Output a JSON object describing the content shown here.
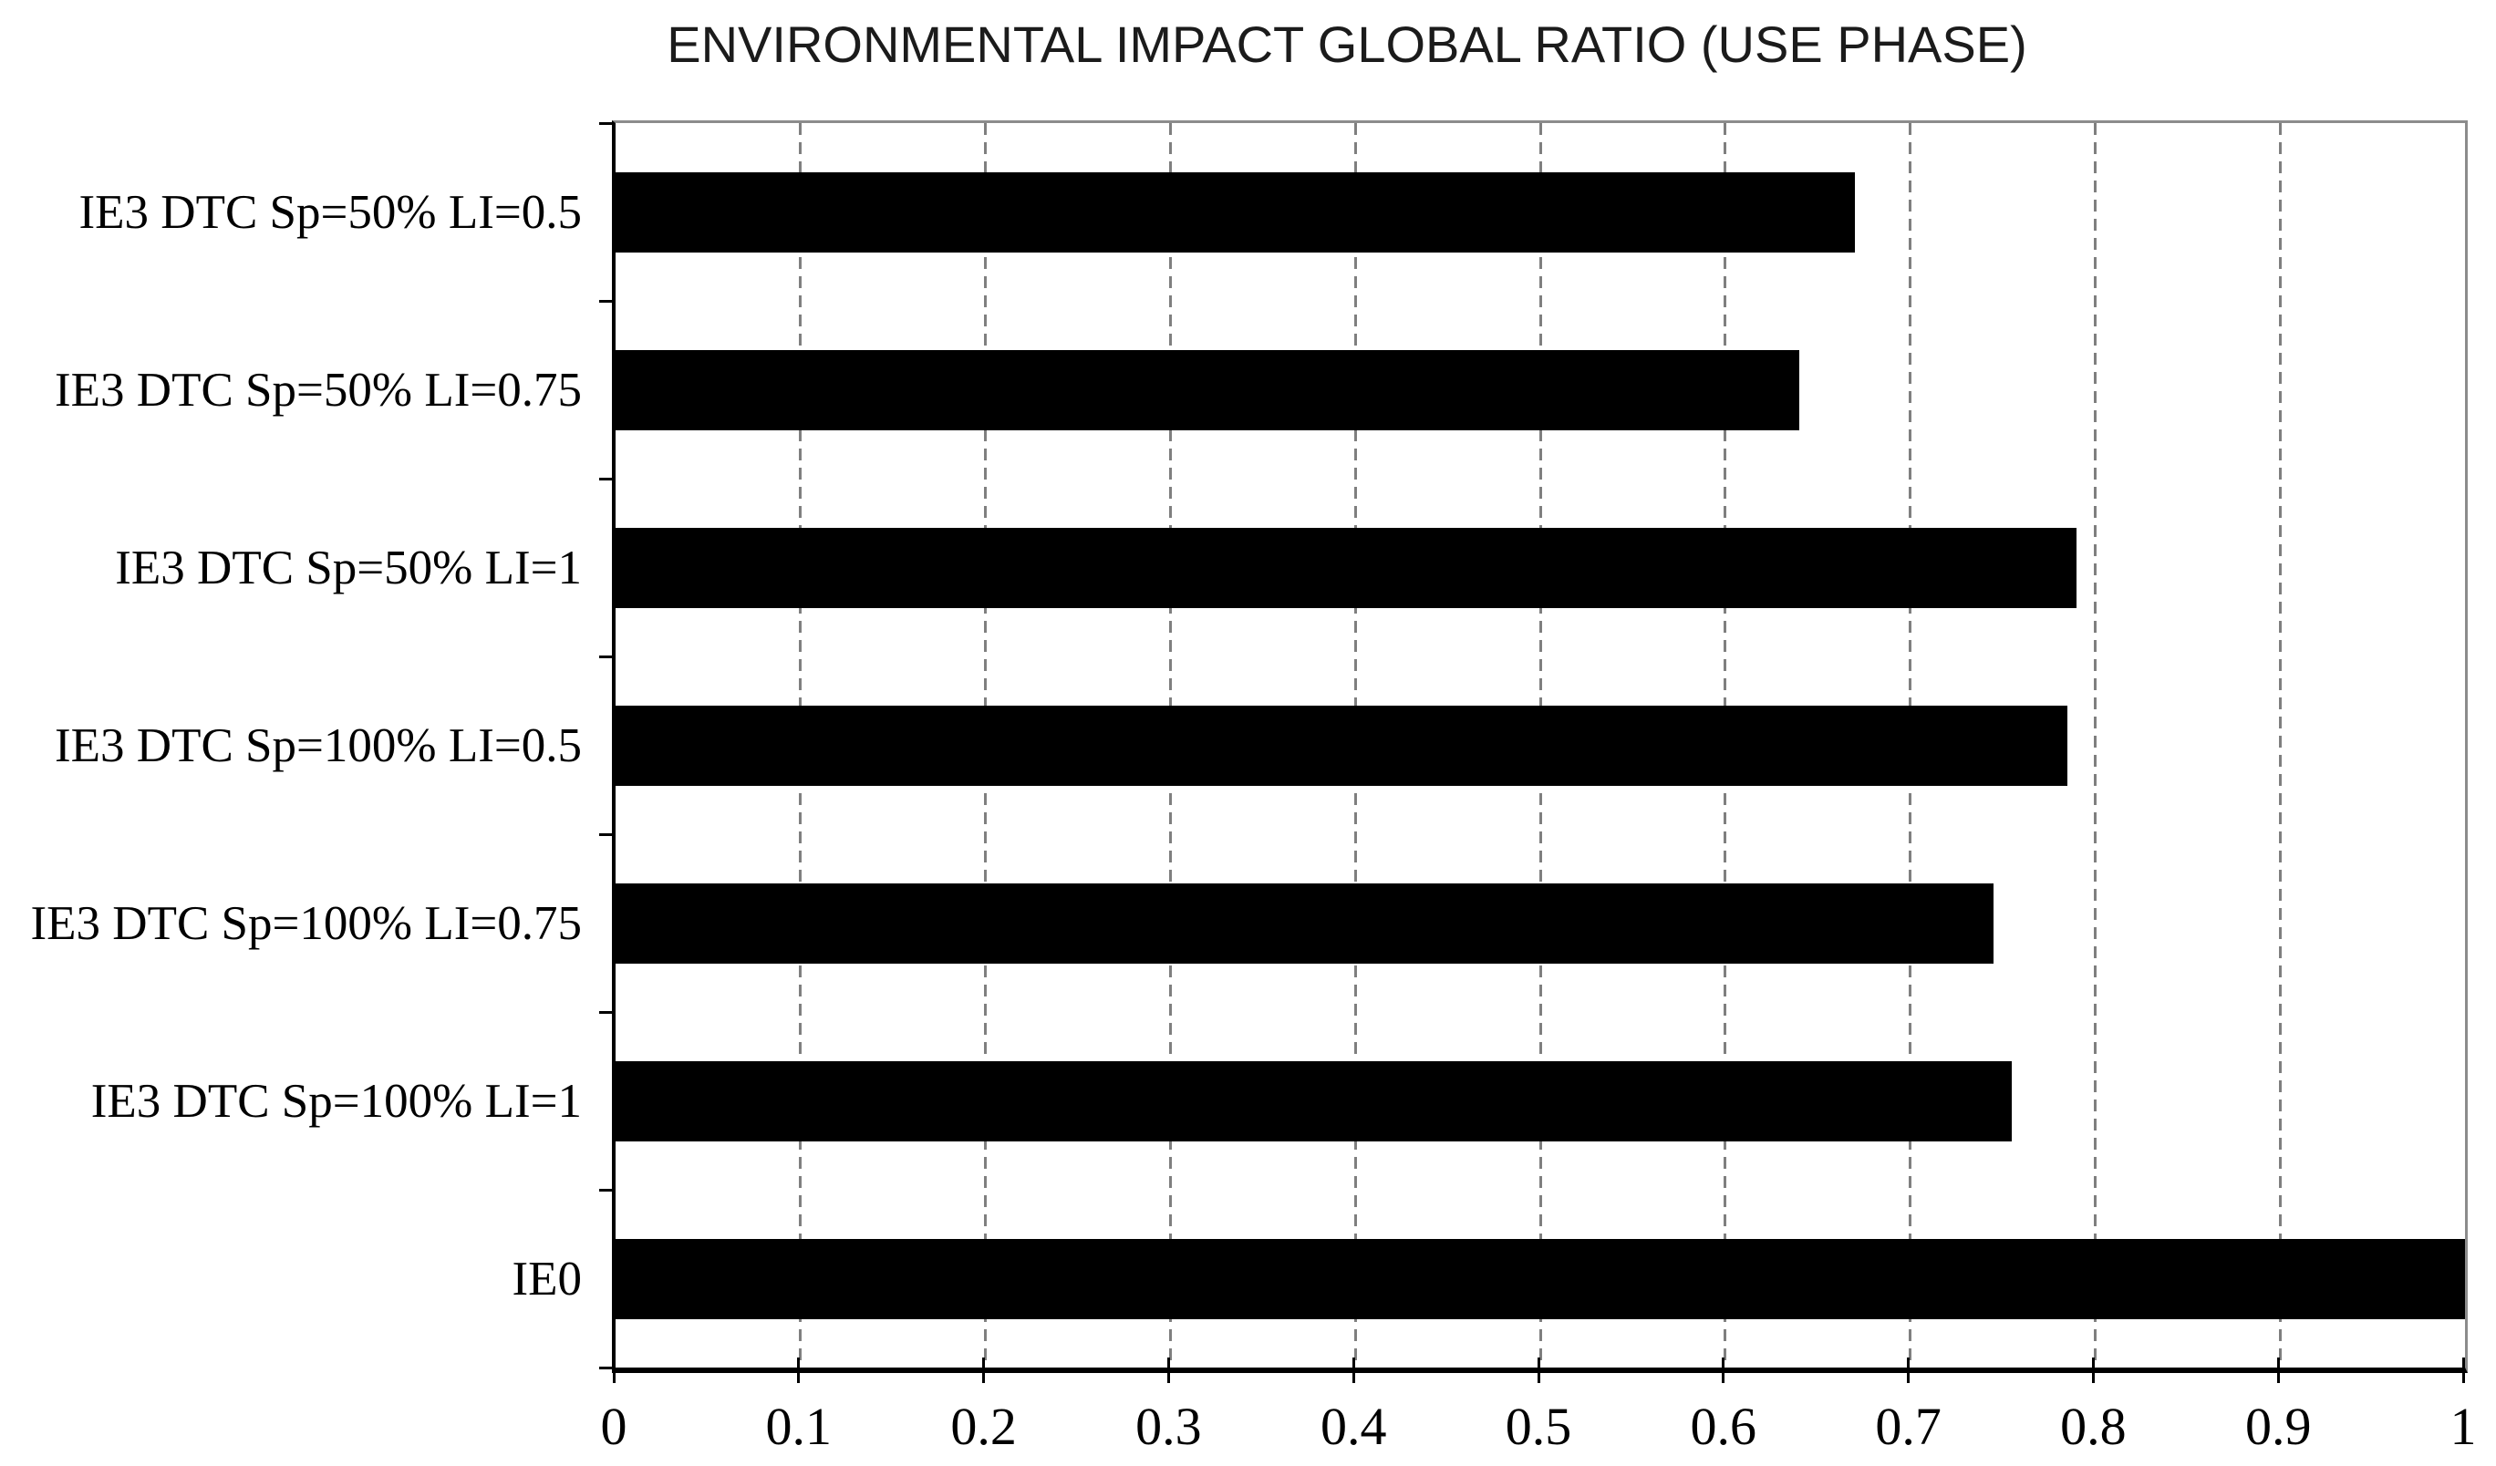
{
  "title": "ENVIRONMENTAL IMPACT GLOBAL RATIO (USE PHASE)",
  "chart_data": {
    "type": "bar",
    "orientation": "horizontal",
    "title": "ENVIRONMENTAL IMPACT GLOBAL RATIO (USE PHASE)",
    "categories": [
      "IE3 DTC Sp=50% LI=0.5",
      "IE3 DTC Sp=50% LI=0.75",
      "IE3 DTC Sp=50% LI=1",
      "IE3 DTC Sp=100% LI=0.5",
      "IE3 DTC Sp=100% LI=0.75",
      "IE3 DTC Sp=100% LI=1",
      "IE0"
    ],
    "values": [
      0.67,
      0.64,
      0.79,
      0.785,
      0.745,
      0.755,
      1.0
    ],
    "xlabel": "",
    "ylabel": "",
    "xlim": [
      0,
      1
    ],
    "x_tick_values": [
      0,
      0.1,
      0.2,
      0.3,
      0.4,
      0.5,
      0.6,
      0.7,
      0.8,
      0.9,
      1
    ],
    "x_tick_labels": [
      "0",
      "0.1",
      "0.2",
      "0.3",
      "0.4",
      "0.5",
      "0.6",
      "0.7",
      "0.8",
      "0.9",
      "1"
    ],
    "grid": "vertical-dashed-at-0.1-intervals",
    "legend": "none",
    "colors": {
      "bar": "#000000",
      "gridline": "#7f7f7f",
      "plot_border": "#8c8c8c",
      "axis": "#000000",
      "background": "#ffffff"
    }
  }
}
